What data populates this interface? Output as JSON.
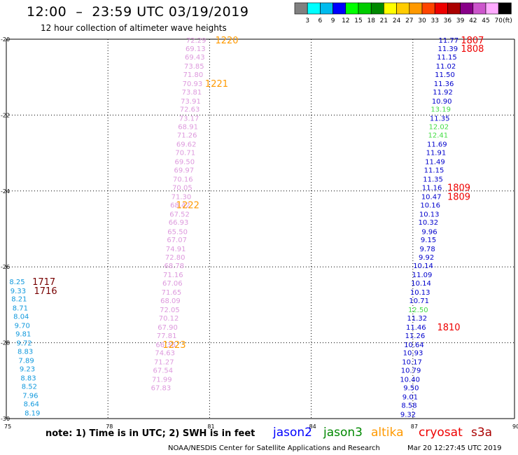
{
  "header": {
    "title": "12:00  –  23:59 UTC 03/19/2019",
    "subtitle": "12 hour collection of altimeter wave heights"
  },
  "footer": {
    "note": "note:  1) Time is in UTC;  2) SWH is in feet",
    "credit": "NOAA/NESDIS Center for Satellite Applications and Research",
    "timestamp": "Mar 20 12:27:45 UTC 2019"
  },
  "legend": [
    {
      "name": "jason2",
      "color": "#0000ff"
    },
    {
      "name": "jason3",
      "color": "#008800"
    },
    {
      "name": "altika",
      "color": "#ff9900"
    },
    {
      "name": "cryosat",
      "color": "#ee0000"
    },
    {
      "name": "s3a",
      "color": "#aa0000"
    }
  ],
  "colorbar": {
    "labels": [
      "3",
      "6",
      "9",
      "12",
      "15",
      "18",
      "21",
      "24",
      "27",
      "30",
      "33",
      "36",
      "39",
      "42",
      "45",
      "70"
    ],
    "unit": "(ft)",
    "colors": [
      "#808080",
      "#00ffff",
      "#00bbee",
      "#0000ff",
      "#00ff00",
      "#00cc00",
      "#008800",
      "#ffff00",
      "#ffcc00",
      "#ff9900",
      "#ff4400",
      "#ee0000",
      "#aa0000",
      "#880088",
      "#cc55cc",
      "#ffaaff",
      "#000000"
    ]
  },
  "chart_data": {
    "type": "scatter",
    "xlim": [
      75,
      90
    ],
    "ylim": [
      -30,
      -20
    ],
    "xticks": [
      "75",
      "78",
      "81",
      "84",
      "87",
      "90"
    ],
    "yticks": [
      "-20",
      "-22",
      "-24",
      "-26",
      "-28",
      "-30"
    ],
    "grid": true,
    "tracks": [
      {
        "color": "#dd99dd",
        "points": [
          [
            80.9,
            -20.02,
            "72.29"
          ],
          [
            80.88,
            -20.24,
            "69.13"
          ],
          [
            80.86,
            -20.46,
            "69.43"
          ],
          [
            80.84,
            -20.7,
            "73.85"
          ],
          [
            80.81,
            -20.92,
            "71.80"
          ],
          [
            80.79,
            -21.16,
            "70.93"
          ],
          [
            80.77,
            -21.38,
            "73.81"
          ],
          [
            80.74,
            -21.62,
            "73.91"
          ],
          [
            80.71,
            -21.84,
            "72.63"
          ],
          [
            80.69,
            -22.08,
            "73.17"
          ],
          [
            80.66,
            -22.3,
            "68.91"
          ],
          [
            80.63,
            -22.52,
            "71.26"
          ],
          [
            80.61,
            -22.76,
            "69.62"
          ],
          [
            80.58,
            -22.98,
            "70.71"
          ],
          [
            80.56,
            -23.22,
            "69.50"
          ],
          [
            80.54,
            -23.44,
            "69.97"
          ],
          [
            80.51,
            -23.68,
            "70.16"
          ],
          [
            80.49,
            -23.9,
            "70.05"
          ],
          [
            80.46,
            -24.14,
            "71.30"
          ],
          [
            80.43,
            -24.36,
            "68.42"
          ],
          [
            80.41,
            -24.6,
            "67.52"
          ],
          [
            80.38,
            -24.82,
            "66.93"
          ],
          [
            80.35,
            -25.06,
            "65.50"
          ],
          [
            80.33,
            -25.28,
            "67.07"
          ],
          [
            80.3,
            -25.52,
            "74.91"
          ],
          [
            80.28,
            -25.74,
            "72.80"
          ],
          [
            80.25,
            -25.96,
            "68.78"
          ],
          [
            80.22,
            -26.2,
            "71.16"
          ],
          [
            80.2,
            -26.42,
            "67.06"
          ],
          [
            80.17,
            -26.66,
            "71.65"
          ],
          [
            80.14,
            -26.88,
            "68.09"
          ],
          [
            80.12,
            -27.12,
            "72.05"
          ],
          [
            80.09,
            -27.34,
            "70.12"
          ],
          [
            80.06,
            -27.58,
            "67.90"
          ],
          [
            80.03,
            -27.8,
            "77.81"
          ],
          [
            80.0,
            -28.04,
            "66.36"
          ],
          [
            79.98,
            -28.26,
            "74.63"
          ],
          [
            79.95,
            -28.5,
            "71.27"
          ],
          [
            79.92,
            -28.72,
            "67.54"
          ],
          [
            79.89,
            -28.96,
            "71.99"
          ],
          [
            79.86,
            -29.18,
            "67.83"
          ]
        ]
      },
      {
        "color": "#0000cc",
        "points": [
          [
            88.35,
            -20.02,
            "11.77"
          ],
          [
            88.33,
            -20.24,
            "11.39"
          ],
          [
            88.3,
            -20.46,
            "11.15"
          ],
          [
            88.27,
            -20.7,
            "11.02"
          ],
          [
            88.24,
            -20.92,
            "11.50"
          ],
          [
            88.21,
            -21.16,
            "11.36"
          ],
          [
            88.18,
            -21.38,
            "11.92"
          ],
          [
            88.15,
            -21.62,
            "10.90"
          ],
          [
            88.12,
            -21.84,
            "13.19"
          ],
          [
            88.09,
            -22.08,
            "11.35"
          ],
          [
            88.06,
            -22.3,
            "12.02"
          ],
          [
            88.04,
            -22.52,
            "12.41"
          ],
          [
            88.01,
            -22.76,
            "11.69"
          ],
          [
            87.98,
            -22.98,
            "11.91"
          ],
          [
            87.95,
            -23.22,
            "11.49"
          ],
          [
            87.92,
            -23.44,
            "11.15"
          ],
          [
            87.89,
            -23.68,
            "11.35"
          ],
          [
            87.86,
            -23.9,
            "11.16"
          ],
          [
            87.84,
            -24.14,
            "10.47"
          ],
          [
            87.81,
            -24.36,
            "10.16"
          ],
          [
            87.78,
            -24.6,
            "10.13"
          ],
          [
            87.75,
            -24.82,
            "10.32"
          ],
          [
            87.72,
            -25.06,
            "9.96"
          ],
          [
            87.69,
            -25.28,
            "9.15"
          ],
          [
            87.66,
            -25.52,
            "9.78"
          ],
          [
            87.63,
            -25.74,
            "9.92"
          ],
          [
            87.6,
            -25.96,
            "10.14"
          ],
          [
            87.57,
            -26.2,
            "11.09"
          ],
          [
            87.54,
            -26.42,
            "10.14"
          ],
          [
            87.51,
            -26.66,
            "10.13"
          ],
          [
            87.48,
            -26.88,
            "10.71"
          ],
          [
            87.45,
            -27.12,
            "12.50"
          ],
          [
            87.42,
            -27.34,
            "11.32"
          ],
          [
            87.39,
            -27.58,
            "11.46"
          ],
          [
            87.36,
            -27.8,
            "11.26"
          ],
          [
            87.33,
            -28.04,
            "10.64"
          ],
          [
            87.3,
            -28.26,
            "10.93"
          ],
          [
            87.27,
            -28.5,
            "10.17"
          ],
          [
            87.24,
            -28.72,
            "10.79"
          ],
          [
            87.21,
            -28.96,
            "10.40"
          ],
          [
            87.18,
            -29.18,
            "9.50"
          ],
          [
            87.15,
            -29.42,
            "9.01"
          ],
          [
            87.12,
            -29.64,
            "8.58"
          ],
          [
            87.09,
            -29.88,
            "9.32"
          ]
        ]
      },
      {
        "color": "#1199dd",
        "points": [
          [
            75.55,
            -26.38,
            "8.25"
          ],
          [
            75.58,
            -26.62,
            "9.33"
          ],
          [
            75.61,
            -26.84,
            "8.21"
          ],
          [
            75.64,
            -27.08,
            "8.71"
          ],
          [
            75.67,
            -27.3,
            "8.04"
          ],
          [
            75.7,
            -27.54,
            "9.70"
          ],
          [
            75.73,
            -27.76,
            "9.81"
          ],
          [
            75.76,
            -28.0,
            "9.72"
          ],
          [
            75.79,
            -28.22,
            "8.83"
          ],
          [
            75.82,
            -28.46,
            "7.89"
          ],
          [
            75.85,
            -28.68,
            "9.23"
          ],
          [
            75.88,
            -28.92,
            "8.83"
          ],
          [
            75.91,
            -29.14,
            "8.52"
          ],
          [
            75.94,
            -29.38,
            "7.96"
          ],
          [
            75.97,
            -29.6,
            "8.64"
          ],
          [
            76.0,
            -29.84,
            "8.19"
          ]
        ]
      }
    ],
    "pass_labels": [
      {
        "x": 81.85,
        "y": -20.02,
        "text": "1220",
        "color": "#ff9900"
      },
      {
        "x": 81.55,
        "y": -21.16,
        "text": "1221",
        "color": "#ff9900"
      },
      {
        "x": 80.7,
        "y": -24.36,
        "text": "1222",
        "color": "#ff9900"
      },
      {
        "x": 80.3,
        "y": -28.04,
        "text": "1223",
        "color": "#ff9900"
      },
      {
        "x": 89.1,
        "y": -20.02,
        "text": "1807",
        "color": "#ee0000"
      },
      {
        "x": 89.1,
        "y": -20.24,
        "text": "1808",
        "color": "#ee0000"
      },
      {
        "x": 88.7,
        "y": -23.9,
        "text": "1809",
        "color": "#ee0000"
      },
      {
        "x": 88.7,
        "y": -24.14,
        "text": "1809",
        "color": "#ee0000"
      },
      {
        "x": 88.4,
        "y": -27.58,
        "text": "1810",
        "color": "#ee0000"
      },
      {
        "x": 76.45,
        "y": -26.38,
        "text": "1717",
        "color": "#770000"
      },
      {
        "x": 76.5,
        "y": -26.62,
        "text": "1716",
        "color": "#770000"
      }
    ]
  }
}
